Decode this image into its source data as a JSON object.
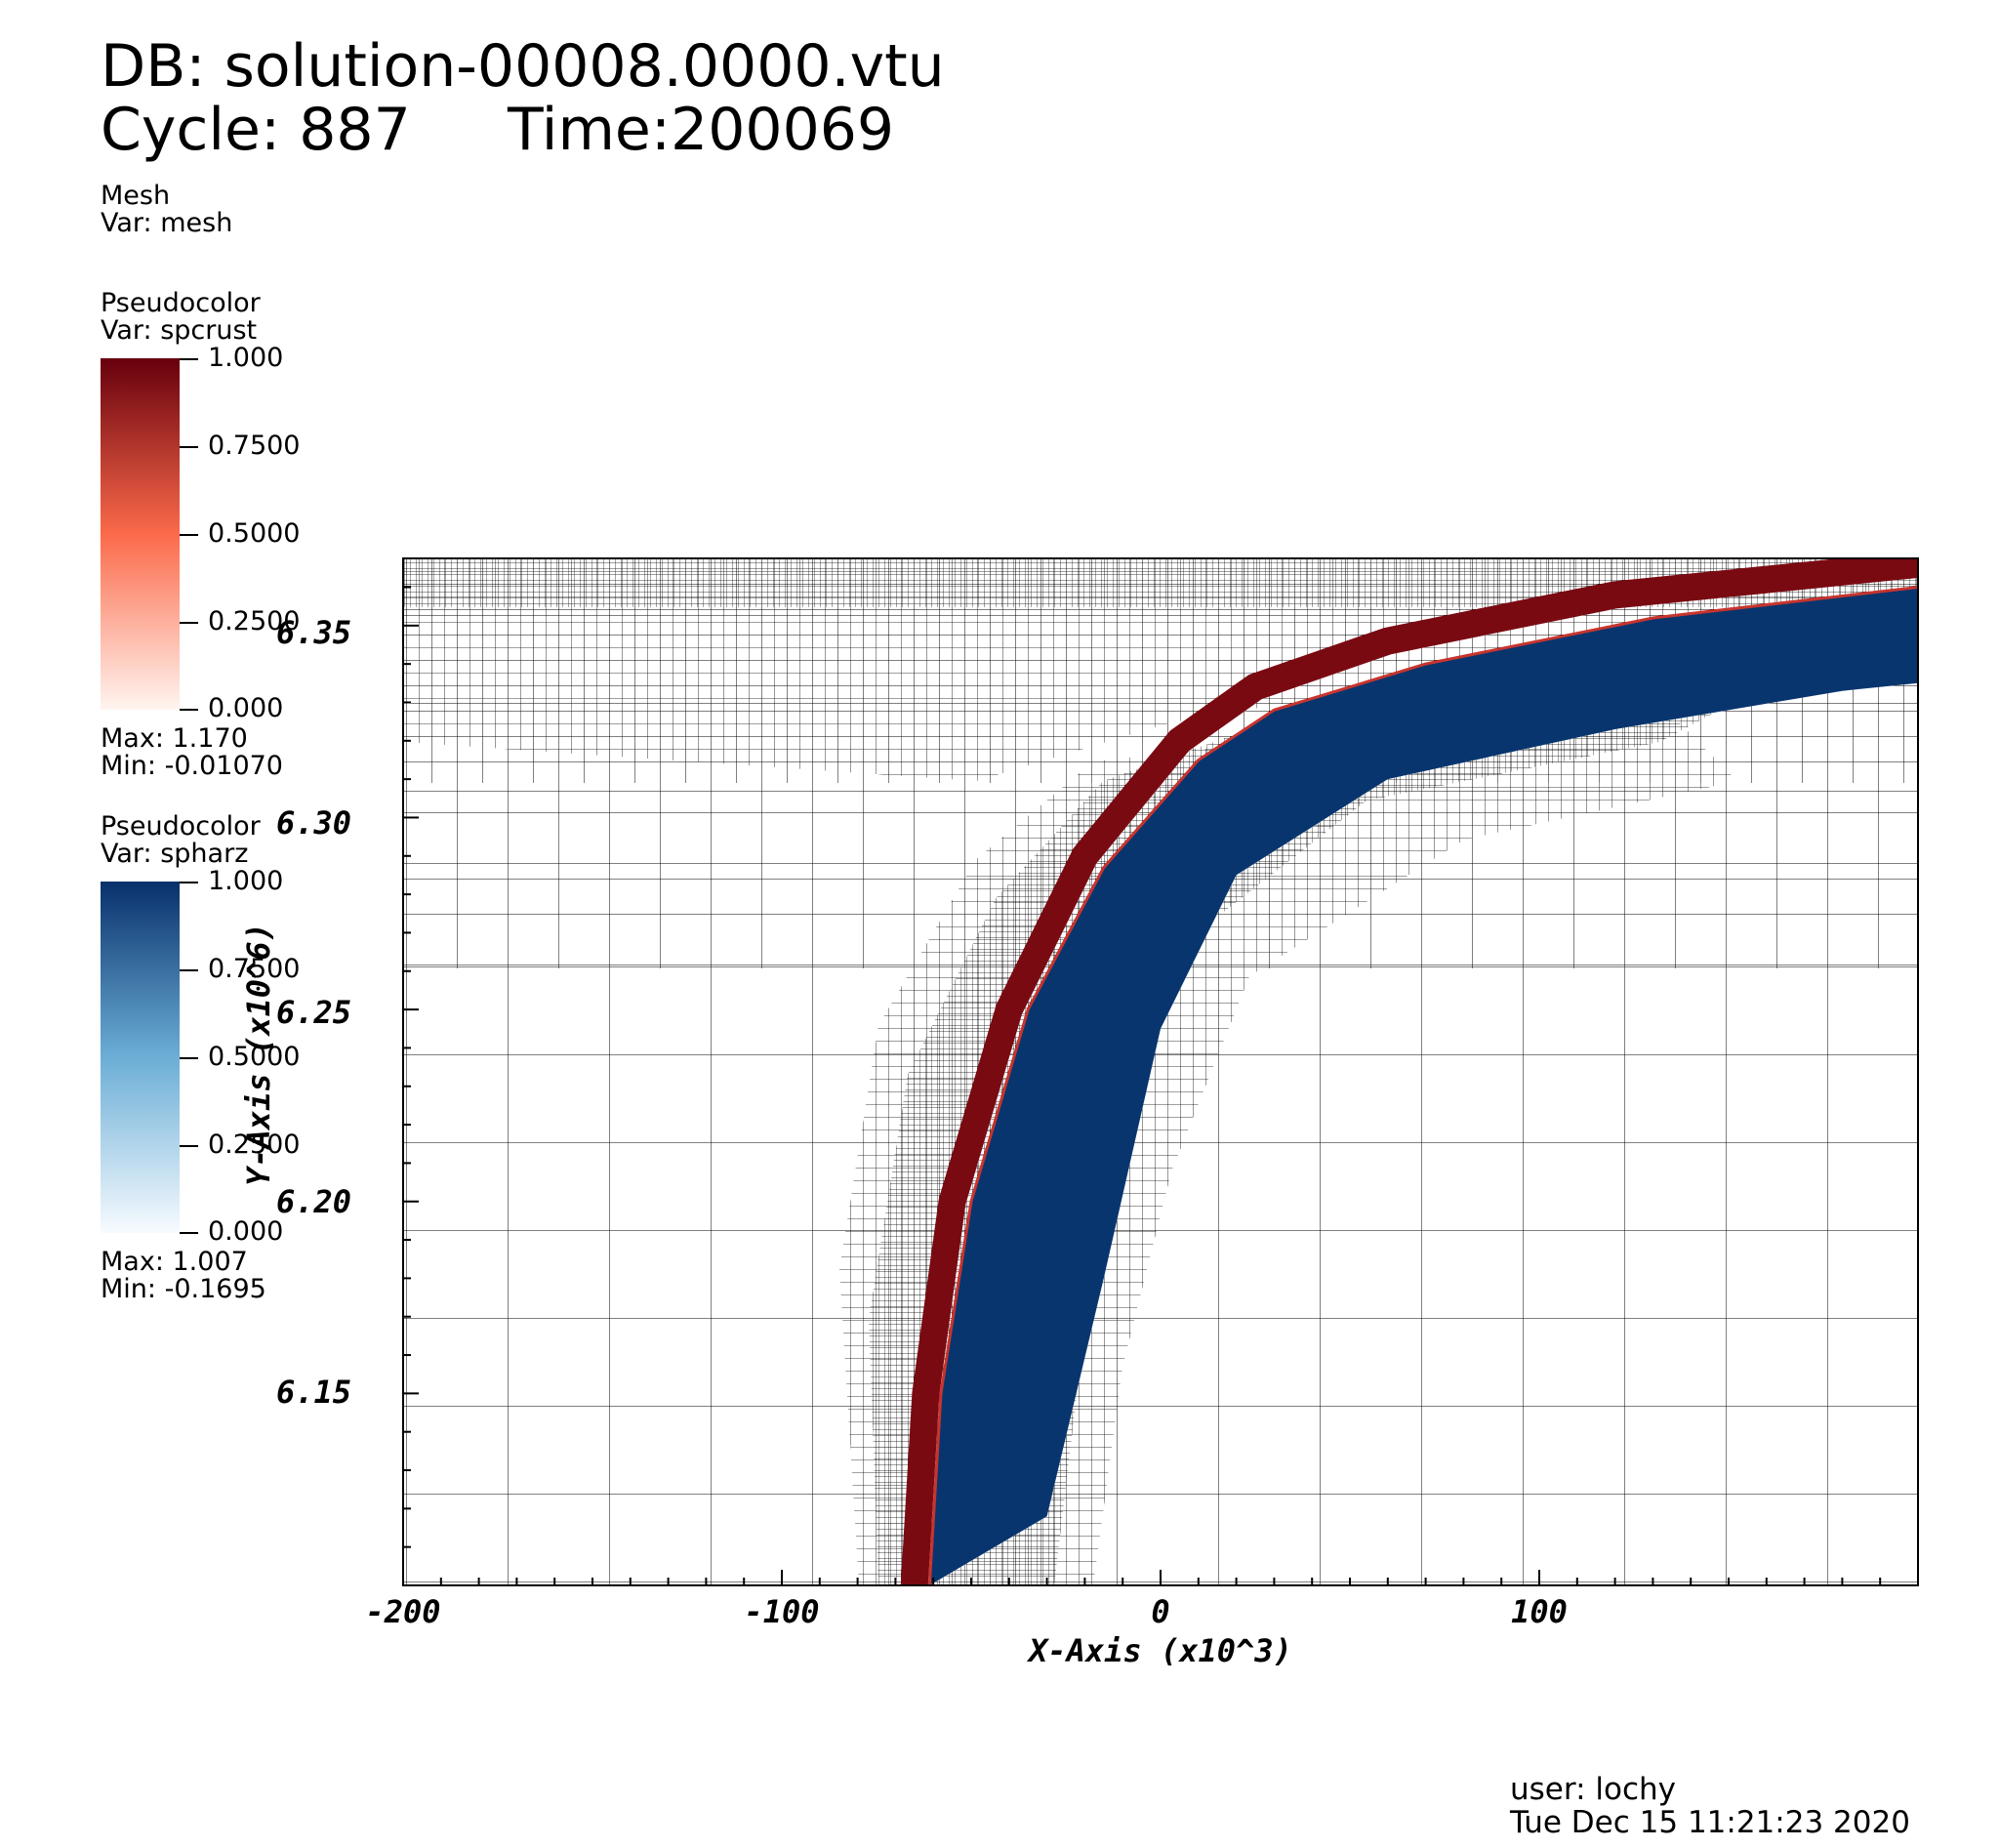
{
  "header": {
    "db_line": "DB: solution-00008.0000.vtu",
    "cycle_label": "Cycle: 887",
    "time_label": "Time:200069"
  },
  "legend": {
    "mesh": {
      "title": "Mesh",
      "var": "Var: mesh"
    },
    "spcrust": {
      "title": "Pseudocolor",
      "var": "Var: spcrust",
      "ticks": [
        "1.000",
        "0.7500",
        "0.5000",
        "0.2500",
        "0.000"
      ],
      "max": "Max:  1.170",
      "min": "Min: -0.01070",
      "color_top": "#67000d",
      "color_mid": "#fb6a4a",
      "color_bottom": "#fff5f0"
    },
    "spharz": {
      "title": "Pseudocolor",
      "var": "Var: spharz",
      "ticks": [
        "1.000",
        "0.7500",
        "0.5000",
        "0.2500",
        "0.000"
      ],
      "max": "Max:  1.007",
      "min": "Min: -0.1695",
      "color_top": "#08306b",
      "color_mid": "#6baed6",
      "color_bottom": "#f7fbff"
    }
  },
  "footer": {
    "user": "user: lochy",
    "date": "Tue Dec 15 11:21:23 2020"
  },
  "chart_data": {
    "type": "heatmap",
    "title": "",
    "xlabel": "X-Axis (x10^3)",
    "ylabel": "Y-Axis (x10^6)",
    "xlim": [
      -200,
      200
    ],
    "ylim": [
      6.1,
      6.37
    ],
    "x_ticks": [
      -200,
      -100,
      0,
      100
    ],
    "x_tick_labels": [
      "-200",
      "-100",
      "0",
      "100"
    ],
    "y_ticks": [
      6.15,
      6.2,
      6.25,
      6.3,
      6.35
    ],
    "y_tick_labels": [
      "6.15",
      "6.20",
      "6.25",
      "6.30",
      "6.35"
    ],
    "grid": false,
    "series": [
      {
        "name": "spcrust",
        "color": "#7a0a12",
        "curve": [
          [
            -65,
            6.1
          ],
          [
            -62,
            6.15
          ],
          [
            -55,
            6.2
          ],
          [
            -40,
            6.25
          ],
          [
            -20,
            6.29
          ],
          [
            5,
            6.32
          ],
          [
            25,
            6.334
          ],
          [
            60,
            6.346
          ],
          [
            120,
            6.358
          ],
          [
            200,
            6.366
          ]
        ]
      },
      {
        "name": "spharz",
        "color": "#08356e",
        "upper": [
          [
            -61,
            6.1
          ],
          [
            -58,
            6.15
          ],
          [
            -50,
            6.2
          ],
          [
            -35,
            6.25
          ],
          [
            -15,
            6.287
          ],
          [
            10,
            6.315
          ],
          [
            30,
            6.328
          ],
          [
            70,
            6.34
          ],
          [
            130,
            6.352
          ],
          [
            200,
            6.36
          ]
        ],
        "lower": [
          [
            -61,
            6.1
          ],
          [
            -30,
            6.118
          ],
          [
            -15,
            6.18
          ],
          [
            0,
            6.245
          ],
          [
            20,
            6.285
          ],
          [
            60,
            6.31
          ],
          [
            120,
            6.323
          ],
          [
            180,
            6.333
          ],
          [
            200,
            6.335
          ]
        ]
      }
    ]
  }
}
